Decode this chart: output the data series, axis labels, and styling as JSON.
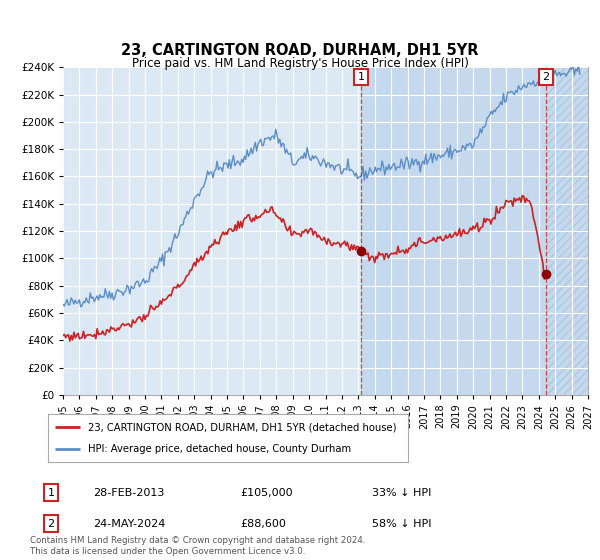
{
  "title": "23, CARTINGTON ROAD, DURHAM, DH1 5YR",
  "subtitle": "Price paid vs. HM Land Registry's House Price Index (HPI)",
  "legend_line1": "23, CARTINGTON ROAD, DURHAM, DH1 5YR (detached house)",
  "legend_line2": "HPI: Average price, detached house, County Durham",
  "annotation1_date": "28-FEB-2013",
  "annotation1_price": "£105,000",
  "annotation1_hpi": "33% ↓ HPI",
  "annotation2_date": "24-MAY-2024",
  "annotation2_price": "£88,600",
  "annotation2_hpi": "58% ↓ HPI",
  "footer": "Contains HM Land Registry data © Crown copyright and database right 2024.\nThis data is licensed under the Open Government Licence v3.0.",
  "hpi_color": "#5b8ec4",
  "price_color": "#cc2222",
  "bg_color": "#dce9f5",
  "bg_color_mid": "#cfe0f2",
  "bg_color_hatch": "#cfe0f2",
  "grid_color": "#ffffff",
  "marker1_year": 2013.17,
  "marker1_value": 105000,
  "marker2_year": 2024.42,
  "marker2_value": 88600,
  "ylim": [
    0,
    240000
  ],
  "ytick_step": 20000,
  "xmin": 1995,
  "xmax": 2027
}
